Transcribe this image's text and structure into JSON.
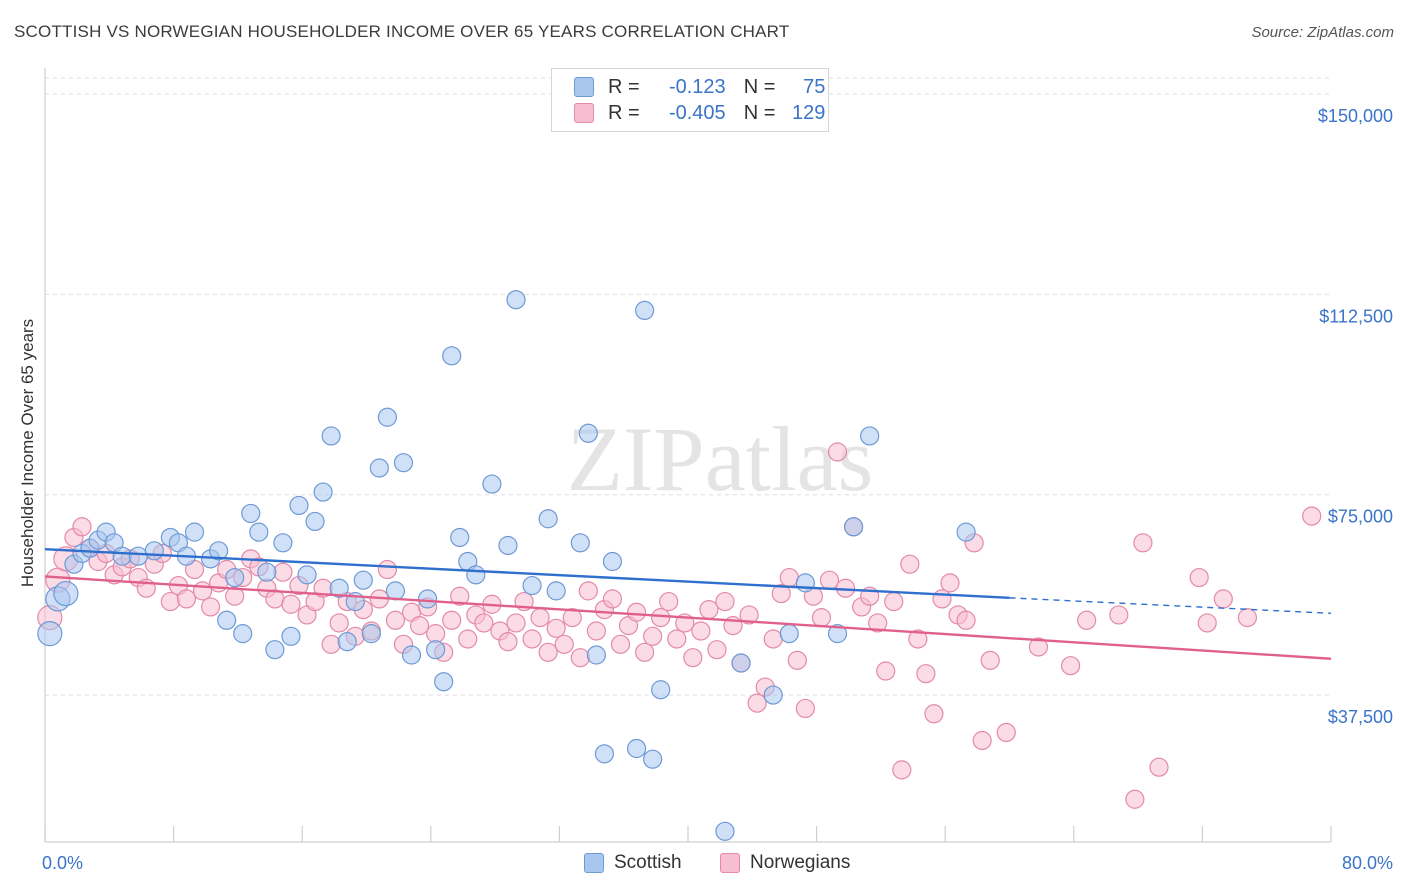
{
  "header": {
    "title": "SCOTTISH VS NORWEGIAN HOUSEHOLDER INCOME OVER 65 YEARS CORRELATION CHART",
    "source": "Source: ZipAtlas.com"
  },
  "watermark": "ZIPatlas",
  "legend": {
    "rows": [
      {
        "r_label": "R =",
        "r_value": "-0.123",
        "n_label": "N =",
        "n_value": "75",
        "color": "#a9c6ef",
        "border": "#6e9ad6"
      },
      {
        "r_label": "R =",
        "r_value": "-0.405",
        "n_label": "N =",
        "n_value": "129",
        "color": "#f7bdd0",
        "border": "#e48aa8"
      }
    ]
  },
  "bottom_legend": {
    "items": [
      {
        "label": "Scottish",
        "color": "#a9c6ef",
        "border": "#6e9ad6"
      },
      {
        "label": "Norwegians",
        "color": "#f7bdd0",
        "border": "#e48aa8"
      }
    ]
  },
  "chart_data": {
    "type": "scatter",
    "title": "SCOTTISH VS NORWEGIAN HOUSEHOLDER INCOME OVER 65 YEARS CORRELATION CHART",
    "xlabel": "",
    "ylabel": "Householder Income Over 65 years",
    "xlim": [
      0,
      80
    ],
    "ylim": [
      10000,
      153000
    ],
    "x_tick_labels": [
      "0.0%",
      "80.0%"
    ],
    "y_ticks": [
      37500,
      75000,
      112500,
      150000
    ],
    "y_tick_labels": [
      "$37,500",
      "$75,000",
      "$112,500",
      "$150,000"
    ],
    "grid": true,
    "legend_position": "top-center",
    "series": [
      {
        "name": "Scottish",
        "color": "#a9c6ef",
        "border": "#6e9ad6",
        "line_color": "#2f6fce",
        "trend": {
          "x0": 0,
          "y0": 64800,
          "x1": 60,
          "y1": 55700,
          "dash_to_x": 80,
          "dash_to_y": 52800
        },
        "points": [
          [
            0.3,
            49000
          ],
          [
            0.8,
            55500
          ],
          [
            1.3,
            56500
          ],
          [
            1.8,
            62000
          ],
          [
            2.3,
            64000
          ],
          [
            2.8,
            65000
          ],
          [
            3.3,
            66500
          ],
          [
            3.8,
            68000
          ],
          [
            4.3,
            66000
          ],
          [
            4.8,
            63500
          ],
          [
            5.8,
            63500
          ],
          [
            6.8,
            64500
          ],
          [
            7.8,
            67000
          ],
          [
            8.3,
            66000
          ],
          [
            8.8,
            63500
          ],
          [
            9.3,
            68000
          ],
          [
            10.3,
            63000
          ],
          [
            10.8,
            64500
          ],
          [
            11.8,
            59500
          ],
          [
            11.3,
            51500
          ],
          [
            12.3,
            49000
          ],
          [
            12.8,
            71500
          ],
          [
            13.3,
            68000
          ],
          [
            13.8,
            60500
          ],
          [
            14.3,
            46000
          ],
          [
            14.8,
            66000
          ],
          [
            15.3,
            48500
          ],
          [
            15.8,
            73000
          ],
          [
            16.3,
            60000
          ],
          [
            16.8,
            70000
          ],
          [
            17.3,
            75500
          ],
          [
            17.8,
            86000
          ],
          [
            18.3,
            57500
          ],
          [
            18.8,
            47500
          ],
          [
            19.3,
            55000
          ],
          [
            19.8,
            59000
          ],
          [
            20.3,
            49000
          ],
          [
            20.8,
            80000
          ],
          [
            21.3,
            89500
          ],
          [
            21.8,
            57000
          ],
          [
            22.3,
            81000
          ],
          [
            22.8,
            45000
          ],
          [
            23.8,
            55500
          ],
          [
            24.3,
            46000
          ],
          [
            24.8,
            40000
          ],
          [
            25.3,
            101000
          ],
          [
            25.8,
            67000
          ],
          [
            26.3,
            62500
          ],
          [
            26.8,
            60000
          ],
          [
            27.8,
            77000
          ],
          [
            28.8,
            65500
          ],
          [
            29.3,
            111500
          ],
          [
            30.3,
            58000
          ],
          [
            31.3,
            70500
          ],
          [
            31.8,
            57000
          ],
          [
            33.3,
            66000
          ],
          [
            33.8,
            86500
          ],
          [
            34.3,
            45000
          ],
          [
            34.8,
            26500
          ],
          [
            35.3,
            62500
          ],
          [
            36.8,
            27500
          ],
          [
            37.3,
            109500
          ],
          [
            37.8,
            25500
          ],
          [
            38.3,
            38500
          ],
          [
            42.3,
            12000
          ],
          [
            43.3,
            43500
          ],
          [
            45.3,
            37500
          ],
          [
            46.3,
            49000
          ],
          [
            47.3,
            58500
          ],
          [
            49.3,
            49000
          ],
          [
            50.3,
            69000
          ],
          [
            51.3,
            86000
          ],
          [
            57.3,
            68000
          ]
        ]
      },
      {
        "name": "Norwegians",
        "color": "#f7bdd0",
        "border": "#e48aa8",
        "line_color": "#e0608c",
        "trend": {
          "x0": 0,
          "y0": 59700,
          "x1": 80,
          "y1": 44300
        },
        "points": [
          [
            0.3,
            52000
          ],
          [
            0.8,
            59000
          ],
          [
            1.3,
            63000
          ],
          [
            1.8,
            67000
          ],
          [
            2.3,
            69000
          ],
          [
            2.8,
            65000
          ],
          [
            3.3,
            62500
          ],
          [
            3.8,
            64000
          ],
          [
            4.3,
            60000
          ],
          [
            4.8,
            61500
          ],
          [
            5.3,
            63000
          ],
          [
            5.8,
            59500
          ],
          [
            6.3,
            57500
          ],
          [
            6.8,
            62000
          ],
          [
            7.3,
            64000
          ],
          [
            7.8,
            55000
          ],
          [
            8.3,
            58000
          ],
          [
            8.8,
            55500
          ],
          [
            9.3,
            61000
          ],
          [
            9.8,
            57000
          ],
          [
            10.3,
            54000
          ],
          [
            10.8,
            58500
          ],
          [
            11.3,
            61000
          ],
          [
            11.8,
            56000
          ],
          [
            12.3,
            59500
          ],
          [
            12.8,
            63000
          ],
          [
            13.3,
            61500
          ],
          [
            13.8,
            57500
          ],
          [
            14.3,
            55500
          ],
          [
            14.8,
            60500
          ],
          [
            15.3,
            54500
          ],
          [
            15.8,
            58000
          ],
          [
            16.3,
            52500
          ],
          [
            16.8,
            55000
          ],
          [
            17.3,
            57500
          ],
          [
            17.8,
            47000
          ],
          [
            18.3,
            51000
          ],
          [
            18.8,
            55000
          ],
          [
            19.3,
            48500
          ],
          [
            19.8,
            53500
          ],
          [
            20.3,
            49500
          ],
          [
            20.8,
            55500
          ],
          [
            21.3,
            61000
          ],
          [
            21.8,
            51500
          ],
          [
            22.3,
            47000
          ],
          [
            22.8,
            53000
          ],
          [
            23.3,
            50500
          ],
          [
            23.8,
            54000
          ],
          [
            24.3,
            49000
          ],
          [
            24.8,
            45500
          ],
          [
            25.3,
            51500
          ],
          [
            25.8,
            56000
          ],
          [
            26.3,
            48000
          ],
          [
            26.8,
            52500
          ],
          [
            27.3,
            51000
          ],
          [
            27.8,
            54500
          ],
          [
            28.3,
            49500
          ],
          [
            28.8,
            47500
          ],
          [
            29.3,
            51000
          ],
          [
            29.8,
            55000
          ],
          [
            30.3,
            48000
          ],
          [
            30.8,
            52000
          ],
          [
            31.3,
            45500
          ],
          [
            31.8,
            50000
          ],
          [
            32.3,
            47000
          ],
          [
            32.8,
            52000
          ],
          [
            33.3,
            44500
          ],
          [
            33.8,
            57000
          ],
          [
            34.3,
            49500
          ],
          [
            34.8,
            53500
          ],
          [
            35.3,
            55500
          ],
          [
            35.8,
            47000
          ],
          [
            36.3,
            50500
          ],
          [
            36.8,
            53000
          ],
          [
            37.3,
            45500
          ],
          [
            37.8,
            48500
          ],
          [
            38.3,
            52000
          ],
          [
            38.8,
            55000
          ],
          [
            39.3,
            48000
          ],
          [
            39.8,
            51000
          ],
          [
            40.3,
            44500
          ],
          [
            40.8,
            49500
          ],
          [
            41.3,
            53500
          ],
          [
            41.8,
            46000
          ],
          [
            42.3,
            55000
          ],
          [
            42.8,
            50500
          ],
          [
            43.3,
            43500
          ],
          [
            43.8,
            52500
          ],
          [
            44.3,
            36000
          ],
          [
            44.8,
            39000
          ],
          [
            45.3,
            48000
          ],
          [
            45.8,
            56500
          ],
          [
            46.3,
            59500
          ],
          [
            46.8,
            44000
          ],
          [
            47.3,
            35000
          ],
          [
            47.8,
            56000
          ],
          [
            48.3,
            52000
          ],
          [
            48.8,
            59000
          ],
          [
            49.3,
            83000
          ],
          [
            49.8,
            57500
          ],
          [
            50.3,
            69000
          ],
          [
            50.8,
            54000
          ],
          [
            51.3,
            56000
          ],
          [
            51.8,
            51000
          ],
          [
            52.3,
            42000
          ],
          [
            52.8,
            55000
          ],
          [
            53.3,
            23500
          ],
          [
            53.8,
            62000
          ],
          [
            54.3,
            48000
          ],
          [
            54.8,
            41500
          ],
          [
            55.3,
            34000
          ],
          [
            55.8,
            55500
          ],
          [
            56.3,
            58500
          ],
          [
            56.8,
            52500
          ],
          [
            57.3,
            51500
          ],
          [
            57.8,
            66000
          ],
          [
            58.3,
            29000
          ],
          [
            58.8,
            44000
          ],
          [
            59.8,
            30500
          ],
          [
            61.8,
            46500
          ],
          [
            63.8,
            43000
          ],
          [
            64.8,
            51500
          ],
          [
            66.8,
            52500
          ],
          [
            67.8,
            18000
          ],
          [
            68.3,
            66000
          ],
          [
            69.3,
            24000
          ],
          [
            71.8,
            59500
          ],
          [
            72.3,
            51000
          ],
          [
            73.3,
            55500
          ],
          [
            74.8,
            52000
          ],
          [
            78.8,
            71000
          ]
        ]
      }
    ]
  }
}
